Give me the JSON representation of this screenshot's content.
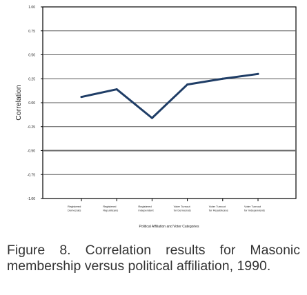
{
  "chart_data": {
    "type": "line",
    "title": "",
    "xlabel": "Political Affiliation and Voter Categories",
    "ylabel": "Correlation",
    "ylim": [
      -1.0,
      1.0
    ],
    "yticks": [
      "1.00",
      "0.75",
      "0.50",
      "0.25",
      "0.00",
      "-0.25",
      "-0.50",
      "-0.75",
      "-1.00"
    ],
    "categories": [
      [
        "Registered",
        "Democrats"
      ],
      [
        "Registered",
        "Republicans"
      ],
      [
        "Registered",
        "Independent"
      ],
      [
        "Voter Turnout",
        "for Democrats"
      ],
      [
        "Voter Turnout",
        "for Republicans"
      ],
      [
        "Voter Turnout",
        "for Independents"
      ]
    ],
    "series": [
      {
        "values": [
          0.06,
          0.14,
          -0.16,
          0.19,
          0.25,
          0.3
        ]
      }
    ],
    "grid": true,
    "line_color": "#1f3d66"
  },
  "caption": {
    "label": "Figure 8.",
    "text": "Correlation results for Masonic membership versus political affiliation, 1990."
  }
}
